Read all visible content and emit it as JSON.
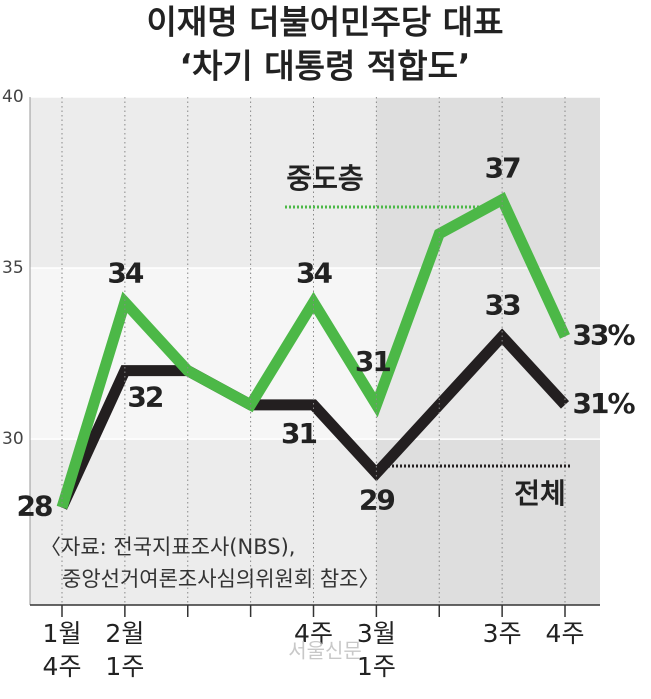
{
  "chart_data": {
    "type": "line",
    "title": "이재명 더불어민주당 대표",
    "subtitle": "‘차기 대통령 적합도’",
    "categories": [
      "1월\n4주",
      "2월\n1주",
      null,
      null,
      "4주",
      "3월\n1주",
      null,
      "3주",
      "4주"
    ],
    "series": [
      {
        "name": "중도층",
        "color": "#4cb847",
        "values": [
          28,
          34,
          32,
          31,
          34,
          31,
          36,
          37,
          33
        ],
        "value_labels": [
          null,
          "34",
          null,
          null,
          "34",
          "31",
          null,
          "37",
          "33%"
        ]
      },
      {
        "name": "전체",
        "color": "#231f20",
        "values": [
          28,
          32,
          32,
          31,
          31,
          29,
          31,
          33,
          31
        ],
        "value_labels": [
          "28",
          "32",
          null,
          null,
          "31",
          "29",
          null,
          "33",
          "31%"
        ]
      }
    ],
    "ylim": [
      25.15,
      40
    ],
    "yticks": [
      30,
      35,
      40
    ],
    "source": [
      "〈자료: 전국지표조사(NBS),",
      "중앙선거여론조사심의위원회 참조〉"
    ],
    "watermark": "서울신문"
  }
}
